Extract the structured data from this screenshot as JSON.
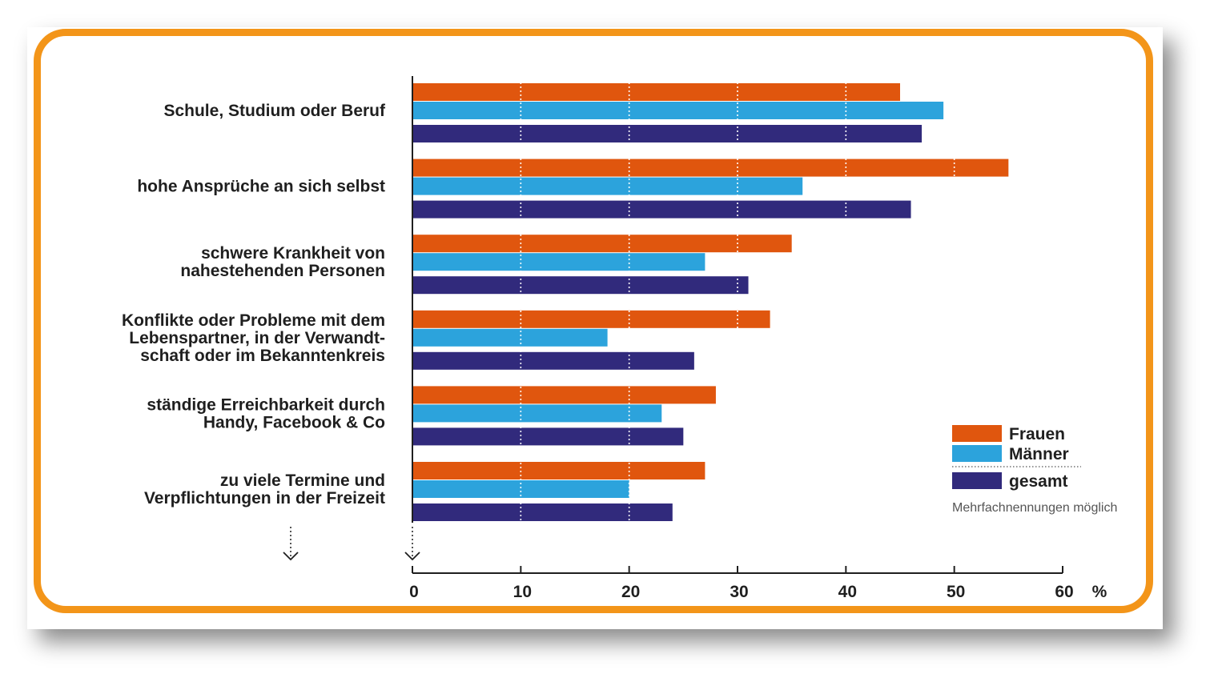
{
  "chart_data": {
    "type": "bar",
    "orientation": "horizontal",
    "categories": [
      [
        "Schule, Studium oder Beruf"
      ],
      [
        "hohe Ansprüche an sich selbst"
      ],
      [
        "schwere Krankheit von",
        "nahestehenden Personen"
      ],
      [
        "Konflikte oder Probleme mit dem",
        "Lebenspartner, in der Verwandt-",
        "schaft oder im Bekanntenkreis"
      ],
      [
        "ständige Erreichbarkeit durch",
        "Handy, Facebook & Co"
      ],
      [
        "zu viele Termine und",
        "Verpflichtungen in der Freizeit"
      ]
    ],
    "series": [
      {
        "name": "Frauen",
        "color": "#e0560e",
        "values": [
          45,
          55,
          35,
          33,
          28,
          27
        ]
      },
      {
        "name": "Männer",
        "color": "#2ca3dc",
        "values": [
          49,
          36,
          27,
          18,
          23,
          20
        ]
      },
      {
        "name": "gesamt",
        "color": "#312a7c",
        "values": [
          47,
          46,
          31,
          26,
          25,
          24
        ]
      }
    ],
    "xlim": [
      0,
      60
    ],
    "xticks": [
      "0",
      "10",
      "20",
      "30",
      "40",
      "50",
      "60"
    ],
    "xunit": "%",
    "grid": "vertical dotted white lines over bars",
    "legend_position": "bottom-right",
    "note": "Mehrfachnennungen möglich"
  }
}
